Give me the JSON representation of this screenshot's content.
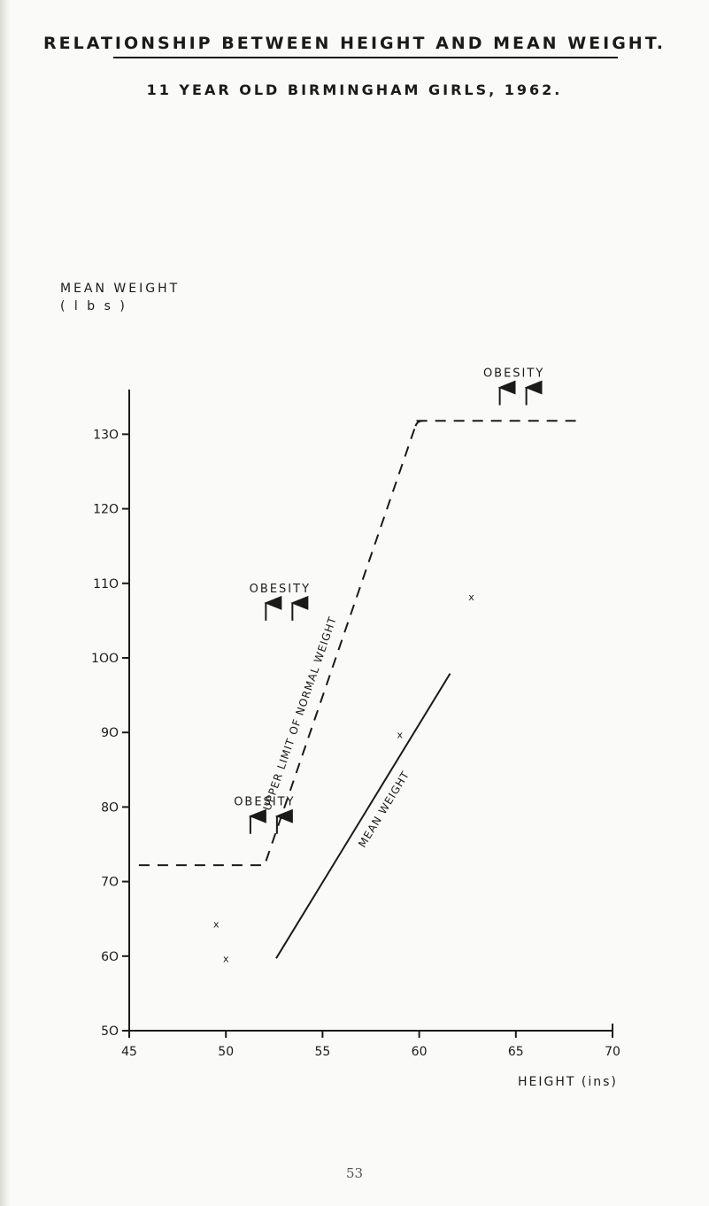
{
  "page": {
    "title": "Relationship between Height and Mean Weight.",
    "subtitle": "11 year old Birmingham Girls, 1962.",
    "page_number": "53"
  },
  "chart_data": {
    "type": "line",
    "ylabel_line1": "MEAN WEIGHT",
    "ylabel_line2": "( l b s )",
    "xlabel": "HEIGHT (ins)",
    "xlim": [
      45,
      70
    ],
    "ylim": [
      50,
      140
    ],
    "xticks": [
      "45",
      "50",
      "55",
      "60",
      "65",
      "70"
    ],
    "yticks": [
      "5O",
      "6O",
      "7O",
      "8O",
      "9O",
      "1OO",
      "11O",
      "12O",
      "13O"
    ],
    "ytick_values": [
      50,
      60,
      70,
      80,
      90,
      100,
      110,
      120,
      130
    ],
    "grid": false,
    "series": [
      {
        "style": "solid",
        "points": [
          [
            52.6,
            59.7
          ],
          [
            61.6,
            97.9
          ]
        ],
        "inline_label": "MEAN WEIGHT"
      },
      {
        "style": "dashed",
        "points": [
          [
            45.5,
            72.2
          ],
          [
            52.0,
            72.2
          ],
          [
            59.9,
            131.8
          ],
          [
            68.1,
            131.8
          ]
        ],
        "inline_label": "UPPER LIMIT OF NORMAL WEIGHT"
      }
    ],
    "scatter_points": [
      [
        49.5,
        64.3
      ],
      [
        50.0,
        59.7
      ],
      [
        59.0,
        89.7
      ],
      [
        62.7,
        108.2
      ]
    ],
    "annotations": [
      {
        "text": "OBESITY",
        "x": 52.0,
        "y": 80.2,
        "arrows": 2
      },
      {
        "text": "OBESITY",
        "x": 52.8,
        "y": 108.8,
        "arrows": 2
      },
      {
        "text": "OBESITY",
        "x": 64.9,
        "y": 137.7,
        "arrows": 2
      }
    ]
  }
}
